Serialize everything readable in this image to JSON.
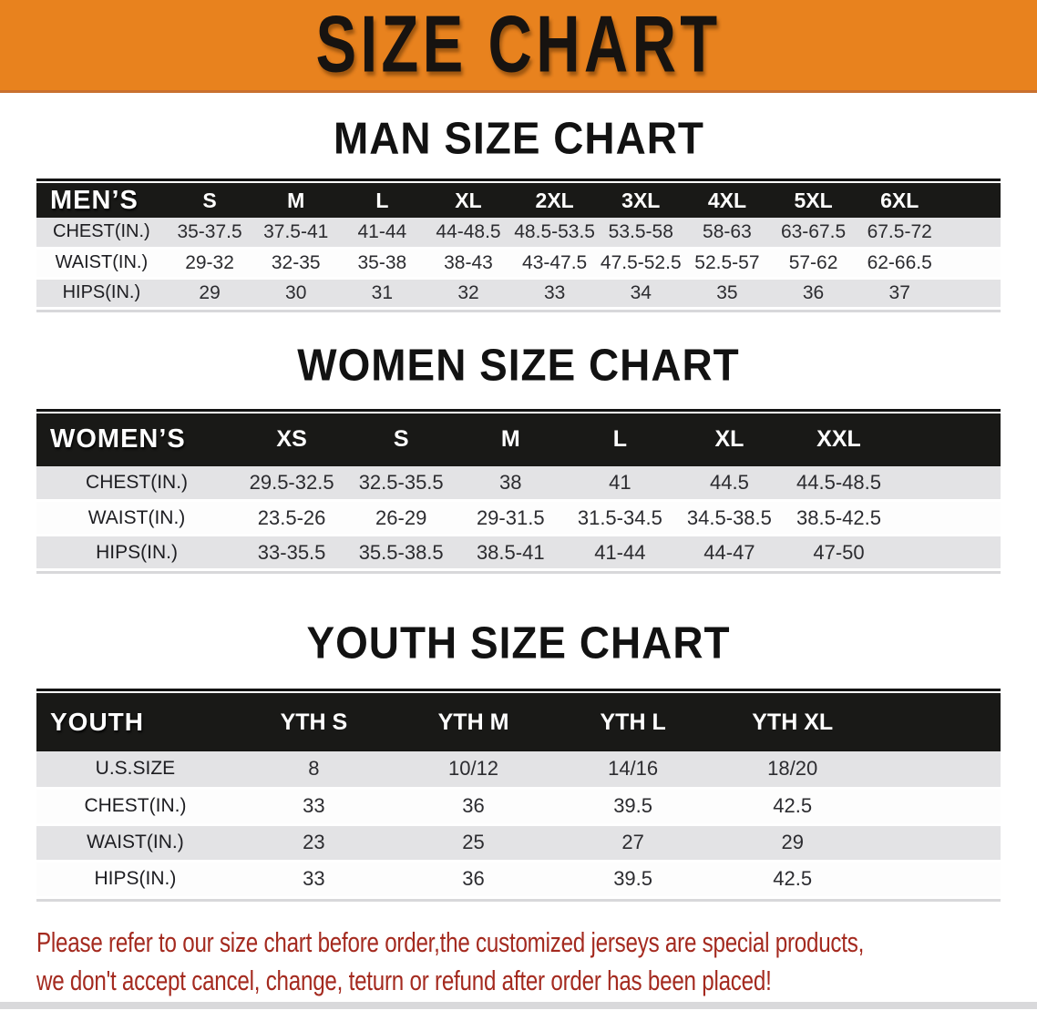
{
  "banner": {
    "title": "SIZE CHART",
    "bg_color": "#E8821E",
    "text_color": "#171310"
  },
  "tables": {
    "men": {
      "title": "MAN SIZE CHART",
      "header_label": "MEN’S",
      "sizes": [
        "S",
        "M",
        "L",
        "XL",
        "2XL",
        "3XL",
        "4XL",
        "5XL",
        "6XL"
      ],
      "rows": [
        {
          "label": "CHEST(IN.)",
          "values": [
            "35-37.5",
            "37.5-41",
            "41-44",
            "44-48.5",
            "48.5-53.5",
            "53.5-58",
            "58-63",
            "63-67.5",
            "67.5-72"
          ]
        },
        {
          "label": "WAIST(IN.)",
          "values": [
            "29-32",
            "32-35",
            "35-38",
            "38-43",
            "43-47.5",
            "47.5-52.5",
            "52.5-57",
            "57-62",
            "62-66.5"
          ]
        },
        {
          "label": "HIPS(IN.)",
          "values": [
            "29",
            "30",
            "31",
            "32",
            "33",
            "34",
            "35",
            "36",
            "37"
          ]
        }
      ]
    },
    "women": {
      "title": "WOMEN SIZE CHART",
      "header_label": "WOMEN’S",
      "sizes": [
        "XS",
        "S",
        "M",
        "L",
        "XL",
        "XXL"
      ],
      "rows": [
        {
          "label": "CHEST(IN.)",
          "values": [
            "29.5-32.5",
            "32.5-35.5",
            "38",
            "41",
            "44.5",
            "44.5-48.5"
          ]
        },
        {
          "label": "WAIST(IN.)",
          "values": [
            "23.5-26",
            "26-29",
            "29-31.5",
            "31.5-34.5",
            "34.5-38.5",
            "38.5-42.5"
          ]
        },
        {
          "label": "HIPS(IN.)",
          "values": [
            "33-35.5",
            "35.5-38.5",
            "38.5-41",
            "41-44",
            "44-47",
            "47-50"
          ]
        }
      ]
    },
    "youth": {
      "title": "YOUTH SIZE CHART",
      "header_label": "YOUTH",
      "sizes": [
        "YTH S",
        "YTH M",
        "YTH L",
        "YTH XL"
      ],
      "rows": [
        {
          "label": "U.S.SIZE",
          "values": [
            "8",
            "10/12",
            "14/16",
            "18/20"
          ]
        },
        {
          "label": "CHEST(IN.)",
          "values": [
            "33",
            "36",
            "39.5",
            "42.5"
          ]
        },
        {
          "label": "WAIST(IN.)",
          "values": [
            "23",
            "25",
            "27",
            "29"
          ]
        },
        {
          "label": "HIPS(IN.)",
          "values": [
            "33",
            "36",
            "39.5",
            "42.5"
          ]
        }
      ]
    }
  },
  "disclaimer": {
    "line1": "Please refer to our size chart before order,the customized jerseys are special products,",
    "line2": "we don't accept cancel, change, teturn or refund after order has been placed!",
    "color": "#A42A1F"
  },
  "style_colors": {
    "header_bar": "#191917",
    "row_gray": "#E3E3E5",
    "row_white": "#FDFDFD"
  }
}
